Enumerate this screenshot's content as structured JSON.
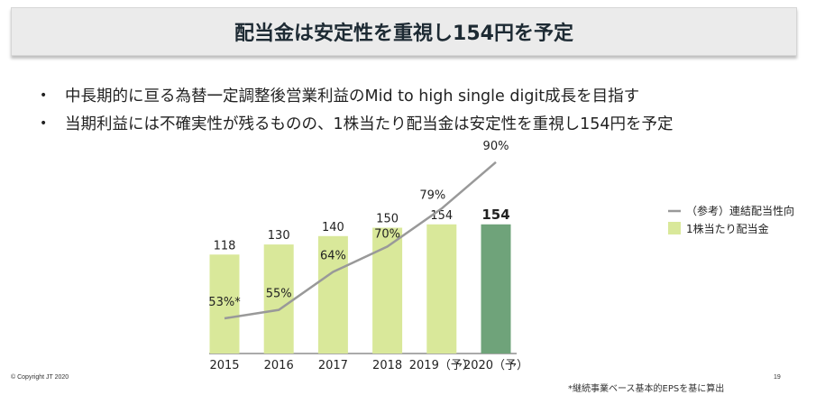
{
  "header": {
    "title": "配当金は安定性を重視し154円を予定"
  },
  "bullets": [
    "中長期的に亘る為替一定調整後営業利益のMid to high single digit成長を目指す",
    "当期利益には不確実性が残るものの、1株当たり配当金は安定性を重視し154円を予定"
  ],
  "footer": {
    "copyright": "© Copyright JT 2020",
    "page": "19",
    "note": "*継続事業ベース基本的EPSを基に算出"
  },
  "chart_data": {
    "type": "bar",
    "categories": [
      "2015",
      "2016",
      "2017",
      "2018",
      "2019（予）",
      "2020（予）"
    ],
    "series": [
      {
        "name": "1株当たり配当金",
        "type": "bar",
        "values": [
          118,
          130,
          140,
          150,
          154,
          154
        ],
        "labels": [
          "118",
          "130",
          "140",
          "150",
          "154",
          "154"
        ],
        "color": "#d9e89a",
        "highlight_color": "#6fa37a"
      },
      {
        "name": "（参考）連結配当性向",
        "type": "line",
        "values": [
          53,
          55,
          64,
          70,
          79,
          90
        ],
        "labels": [
          "53%*",
          "55%",
          "64%",
          "70%",
          "79%",
          "90%"
        ],
        "color": "#999999"
      }
    ],
    "legend": "right",
    "grid": false
  }
}
